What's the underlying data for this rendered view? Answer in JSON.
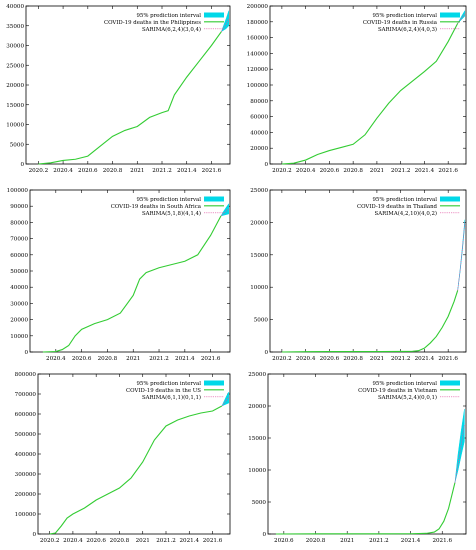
{
  "chart_data": [
    {
      "type": "line",
      "xlim": [
        2020.1,
        2021.75
      ],
      "ylim": [
        0,
        40000
      ],
      "xticks": [
        2020.2,
        2020.4,
        2020.6,
        2020.8,
        2021,
        2021.2,
        2021.4,
        2021.6
      ],
      "xtick_labels": [
        "2020.2",
        "2020.4",
        "2020.6",
        "2020.8",
        "2021",
        "2021.2",
        "2021.4",
        "2021.6"
      ],
      "yticks": [
        0,
        5000,
        10000,
        15000,
        20000,
        25000,
        30000,
        35000,
        40000
      ],
      "ytick_labels": [
        "0",
        "5000",
        "10000",
        "15000",
        "20000",
        "25000",
        "30000",
        "35000",
        "40000"
      ],
      "legend_position": "top-right",
      "legend": [
        "95% prediction interval",
        "COVID-19 deaths in the Philippines",
        "SARIMA(6,2,4)(3,0,4)"
      ],
      "series": [
        {
          "name": "COVID-19 deaths in the Philippines",
          "x": [
            2020.2,
            2020.3,
            2020.4,
            2020.5,
            2020.6,
            2020.7,
            2020.8,
            2020.9,
            2021.0,
            2021.1,
            2021.2,
            2021.25,
            2021.3,
            2021.4,
            2021.5,
            2021.6,
            2021.68
          ],
          "y": [
            0,
            300,
            900,
            1200,
            2000,
            4500,
            7000,
            8500,
            9500,
            11800,
            13000,
            13500,
            17500,
            22000,
            26000,
            30000,
            33500
          ]
        },
        {
          "name": "SARIMA(6,2,4)(3,0,4)",
          "x": [
            2021.68,
            2021.7,
            2021.72,
            2021.74
          ],
          "y": [
            33500,
            34500,
            35500,
            36800
          ]
        }
      ],
      "interval": {
        "x": [
          2021.68,
          2021.7,
          2021.72,
          2021.74
        ],
        "lower": [
          33500,
          33900,
          34300,
          35000
        ],
        "upper": [
          33500,
          35200,
          36900,
          38800
        ]
      }
    },
    {
      "type": "line",
      "xlim": [
        2020.1,
        2021.75
      ],
      "ylim": [
        0,
        200000
      ],
      "xticks": [
        2020.2,
        2020.4,
        2020.6,
        2020.8,
        2021,
        2021.2,
        2021.4,
        2021.6
      ],
      "xtick_labels": [
        "2020.2",
        "2020.4",
        "2020.6",
        "2020.8",
        "2021",
        "2021.2",
        "2021.4",
        "2021.6"
      ],
      "yticks": [
        0,
        20000,
        40000,
        60000,
        80000,
        100000,
        120000,
        140000,
        160000,
        180000,
        200000
      ],
      "ytick_labels": [
        "0",
        "20000",
        "40000",
        "60000",
        "80000",
        "100000",
        "120000",
        "140000",
        "160000",
        "180000",
        "200000"
      ],
      "legend_position": "top-right",
      "legend": [
        "95% prediction interval",
        "COVID-19 deaths in Russia",
        "SARIMA(6,2,4)(4,0,3)"
      ],
      "series": [
        {
          "name": "COVID-19 deaths in Russia",
          "x": [
            2020.2,
            2020.3,
            2020.4,
            2020.5,
            2020.6,
            2020.7,
            2020.8,
            2020.9,
            2021.0,
            2021.1,
            2021.2,
            2021.3,
            2021.4,
            2021.5,
            2021.6,
            2021.68
          ],
          "y": [
            0,
            1000,
            5000,
            12000,
            17000,
            21000,
            25000,
            37000,
            58000,
            77000,
            93000,
            105000,
            117000,
            130000,
            155000,
            178000
          ]
        },
        {
          "name": "SARIMA(6,2,4)(4,0,3)",
          "x": [
            2021.68,
            2021.7,
            2021.72,
            2021.74
          ],
          "y": [
            178000,
            182000,
            186000,
            190000
          ]
        }
      ],
      "interval": {
        "x": [
          2021.68,
          2021.7,
          2021.72,
          2021.74
        ],
        "lower": [
          178000,
          181000,
          184000,
          187000
        ],
        "upper": [
          178000,
          183500,
          189000,
          194000
        ]
      }
    },
    {
      "type": "line",
      "xlim": [
        2020.2,
        2021.75
      ],
      "ylim": [
        0,
        100000
      ],
      "xticks": [
        2020.4,
        2020.6,
        2020.8,
        2021,
        2021.2,
        2021.4,
        2021.6
      ],
      "xtick_labels": [
        "2020.4",
        "2020.6",
        "2020.8",
        "2021",
        "2021.2",
        "2021.4",
        "2021.6"
      ],
      "yticks": [
        0,
        10000,
        20000,
        30000,
        40000,
        50000,
        60000,
        70000,
        80000,
        90000,
        100000
      ],
      "ytick_labels": [
        "0",
        "10000",
        "20000",
        "30000",
        "40000",
        "50000",
        "60000",
        "70000",
        "80000",
        "90000",
        "100000"
      ],
      "legend_position": "top-right",
      "legend": [
        "95% prediction interval",
        "COVID-19 deaths in South Africa",
        "SARIMA(5,1,8)(4,1,4)"
      ],
      "series": [
        {
          "name": "COVID-19 deaths in South Africa",
          "x": [
            2020.3,
            2020.4,
            2020.45,
            2020.5,
            2020.55,
            2020.6,
            2020.7,
            2020.8,
            2020.9,
            2021.0,
            2021.05,
            2021.1,
            2021.2,
            2021.3,
            2021.4,
            2021.5,
            2021.6,
            2021.68
          ],
          "y": [
            0,
            300,
            1500,
            4000,
            10000,
            14000,
            17500,
            20000,
            24000,
            35000,
            45000,
            49000,
            52000,
            54000,
            56000,
            60000,
            72000,
            84000
          ]
        },
        {
          "name": "SARIMA(5,1,8)(4,1,4)",
          "x": [
            2021.68,
            2021.7,
            2021.72,
            2021.74
          ],
          "y": [
            84000,
            85500,
            87000,
            88500
          ]
        }
      ],
      "interval": {
        "x": [
          2021.68,
          2021.7,
          2021.72,
          2021.74
        ],
        "lower": [
          84000,
          84400,
          84800,
          85200
        ],
        "upper": [
          84000,
          86800,
          89200,
          91500
        ]
      }
    },
    {
      "type": "line",
      "xlim": [
        2020.1,
        2021.75
      ],
      "ylim": [
        0,
        25000
      ],
      "xticks": [
        2020.2,
        2020.4,
        2020.6,
        2020.8,
        2021,
        2021.2,
        2021.4,
        2021.6
      ],
      "xtick_labels": [
        "2020.2",
        "2020.4",
        "2020.6",
        "2020.8",
        "2021",
        "2021.2",
        "2021.4",
        "2021.6"
      ],
      "yticks": [
        0,
        5000,
        10000,
        15000,
        20000,
        25000
      ],
      "ytick_labels": [
        "0",
        "5000",
        "10000",
        "15000",
        "20000",
        "25000"
      ],
      "legend_position": "top-right",
      "legend": [
        "95% prediction interval",
        "COVID-19 deaths in Thailand",
        "SARIMA(4,2,10)(4,0,2)"
      ],
      "series": [
        {
          "name": "COVID-19 deaths in Thailand",
          "x": [
            2020.2,
            2020.4,
            2020.6,
            2020.8,
            2021.0,
            2021.2,
            2021.3,
            2021.35,
            2021.4,
            2021.45,
            2021.5,
            2021.55,
            2021.6,
            2021.65,
            2021.68
          ],
          "y": [
            0,
            50,
            60,
            60,
            70,
            80,
            100,
            200,
            600,
            1400,
            2400,
            3800,
            5500,
            7800,
            9500
          ]
        },
        {
          "name": "SARIMA(4,2,10)(4,0,2)",
          "x": [
            2021.68,
            2021.7,
            2021.72,
            2021.74
          ],
          "y": [
            9500,
            12500,
            16000,
            20000
          ]
        }
      ],
      "interval": {
        "x": [
          2021.68,
          2021.7,
          2021.72,
          2021.74
        ],
        "lower": [
          9500,
          12300,
          15700,
          19600
        ],
        "upper": [
          9500,
          12700,
          16300,
          20400
        ]
      }
    },
    {
      "type": "line",
      "xlim": [
        2020.1,
        2021.75
      ],
      "ylim": [
        0,
        800000
      ],
      "xticks": [
        2020.2,
        2020.4,
        2020.6,
        2020.8,
        2021,
        2021.2,
        2021.4,
        2021.6
      ],
      "xtick_labels": [
        "2020.2",
        "2020.4",
        "2020.6",
        "2020.8",
        "2021",
        "2021.2",
        "2021.4",
        "2021.6"
      ],
      "yticks": [
        0,
        100000,
        200000,
        300000,
        400000,
        500000,
        600000,
        700000,
        800000
      ],
      "ytick_labels": [
        "0",
        "100000",
        "200000",
        "300000",
        "400000",
        "500000",
        "600000",
        "700000",
        "800000"
      ],
      "legend_position": "top-right",
      "legend": [
        "95% prediction interval",
        "COVID-19 deaths in the US",
        "SARIMA(6,1,1)(0,1,1)"
      ],
      "series": [
        {
          "name": "COVID-19 deaths in the US",
          "x": [
            2020.2,
            2020.25,
            2020.3,
            2020.35,
            2020.4,
            2020.5,
            2020.6,
            2020.7,
            2020.8,
            2020.9,
            2021.0,
            2021.1,
            2021.2,
            2021.3,
            2021.4,
            2021.5,
            2021.6,
            2021.68
          ],
          "y": [
            0,
            5000,
            40000,
            80000,
            100000,
            130000,
            170000,
            200000,
            230000,
            280000,
            360000,
            470000,
            540000,
            570000,
            590000,
            605000,
            615000,
            640000
          ]
        },
        {
          "name": "SARIMA(6,1,1)(0,1,1)",
          "x": [
            2021.68,
            2021.7,
            2021.72,
            2021.74
          ],
          "y": [
            640000,
            655000,
            670000,
            685000
          ]
        }
      ],
      "interval": {
        "x": [
          2021.68,
          2021.7,
          2021.72,
          2021.74
        ],
        "lower": [
          640000,
          645000,
          650000,
          655000
        ],
        "upper": [
          640000,
          665000,
          690000,
          710000
        ]
      }
    },
    {
      "type": "line",
      "xlim": [
        2020.5,
        2021.75
      ],
      "ylim": [
        0,
        25000
      ],
      "xticks": [
        2020.6,
        2020.8,
        2021,
        2021.2,
        2021.4,
        2021.6
      ],
      "xtick_labels": [
        "2020.6",
        "2020.8",
        "2021",
        "2021.2",
        "2021.4",
        "2021.6"
      ],
      "yticks": [
        0,
        5000,
        10000,
        15000,
        20000,
        25000
      ],
      "ytick_labels": [
        "0",
        "5000",
        "10000",
        "15000",
        "20000",
        "25000"
      ],
      "legend_position": "top-right",
      "legend": [
        "95% prediction interval",
        "COVID-19 deaths in Vietnam",
        "SARIMA(5,2,4)(0,0,1)"
      ],
      "series": [
        {
          "name": "COVID-19 deaths in Vietnam",
          "x": [
            2020.55,
            2020.8,
            2021.0,
            2021.2,
            2021.4,
            2021.5,
            2021.55,
            2021.58,
            2021.61,
            2021.64,
            2021.66,
            2021.68
          ],
          "y": [
            0,
            30,
            35,
            35,
            40,
            100,
            300,
            800,
            2000,
            4000,
            6000,
            8000
          ]
        },
        {
          "name": "SARIMA(5,2,4)(0,0,1)",
          "x": [
            2021.68,
            2021.7,
            2021.72,
            2021.74
          ],
          "y": [
            8000,
            11000,
            14000,
            17000
          ]
        }
      ],
      "interval": {
        "x": [
          2021.68,
          2021.7,
          2021.72,
          2021.74
        ],
        "lower": [
          8000,
          10000,
          12300,
          14500
        ],
        "upper": [
          8000,
          12500,
          16200,
          19500
        ]
      }
    }
  ]
}
